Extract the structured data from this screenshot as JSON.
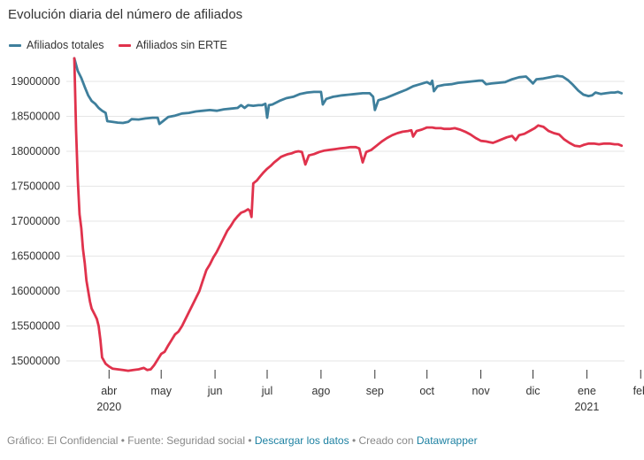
{
  "chart_data": {
    "type": "line",
    "title": "Evolución diaria del número de afiliados",
    "xlabel": "",
    "ylabel": "",
    "ylim": [
      14850000,
      19350000
    ],
    "x_range": [
      0,
      321
    ],
    "yticks": [
      15000000,
      15500000,
      16000000,
      16500000,
      17000000,
      17500000,
      18000000,
      18500000,
      19000000
    ],
    "ytick_labels": [
      "15000000",
      "15500000",
      "16000000",
      "16500000",
      "17000000",
      "17500000",
      "18000000",
      "18500000",
      "19000000"
    ],
    "xticks": [
      {
        "day": 20,
        "label": "abr",
        "year": "2020"
      },
      {
        "day": 50,
        "label": "may",
        "year": ""
      },
      {
        "day": 81,
        "label": "jun",
        "year": ""
      },
      {
        "day": 111,
        "label": "jul",
        "year": ""
      },
      {
        "day": 142,
        "label": "ago",
        "year": ""
      },
      {
        "day": 173,
        "label": "sep",
        "year": ""
      },
      {
        "day": 203,
        "label": "oct",
        "year": ""
      },
      {
        "day": 234,
        "label": "nov",
        "year": ""
      },
      {
        "day": 264,
        "label": "dic",
        "year": ""
      },
      {
        "day": 295,
        "label": "ene",
        "year": "2021"
      },
      {
        "day": 326,
        "label": "feb",
        "year": ""
      }
    ],
    "series": [
      {
        "name": "Afiliados totales",
        "color": "#3e7f9c",
        "points": [
          [
            0,
            19330000
          ],
          [
            2,
            19150000
          ],
          [
            4,
            19050000
          ],
          [
            6,
            18920000
          ],
          [
            8,
            18800000
          ],
          [
            10,
            18720000
          ],
          [
            12,
            18680000
          ],
          [
            14,
            18620000
          ],
          [
            16,
            18580000
          ],
          [
            18,
            18550000
          ],
          [
            19,
            18430000
          ],
          [
            22,
            18420000
          ],
          [
            25,
            18410000
          ],
          [
            28,
            18405000
          ],
          [
            31,
            18420000
          ],
          [
            33,
            18460000
          ],
          [
            37,
            18455000
          ],
          [
            41,
            18470000
          ],
          [
            45,
            18480000
          ],
          [
            48,
            18480000
          ],
          [
            49,
            18390000
          ],
          [
            51,
            18430000
          ],
          [
            54,
            18490000
          ],
          [
            58,
            18510000
          ],
          [
            62,
            18540000
          ],
          [
            66,
            18550000
          ],
          [
            70,
            18570000
          ],
          [
            74,
            18580000
          ],
          [
            78,
            18590000
          ],
          [
            82,
            18580000
          ],
          [
            86,
            18600000
          ],
          [
            90,
            18610000
          ],
          [
            94,
            18620000
          ],
          [
            96,
            18660000
          ],
          [
            98,
            18620000
          ],
          [
            100,
            18660000
          ],
          [
            103,
            18650000
          ],
          [
            106,
            18660000
          ],
          [
            108,
            18660000
          ],
          [
            110,
            18680000
          ],
          [
            111,
            18480000
          ],
          [
            112,
            18660000
          ],
          [
            114,
            18670000
          ],
          [
            118,
            18720000
          ],
          [
            122,
            18760000
          ],
          [
            126,
            18780000
          ],
          [
            130,
            18820000
          ],
          [
            134,
            18840000
          ],
          [
            138,
            18850000
          ],
          [
            142,
            18850000
          ],
          [
            143,
            18670000
          ],
          [
            145,
            18750000
          ],
          [
            149,
            18780000
          ],
          [
            154,
            18800000
          ],
          [
            158,
            18810000
          ],
          [
            162,
            18820000
          ],
          [
            166,
            18830000
          ],
          [
            170,
            18830000
          ],
          [
            172,
            18780000
          ],
          [
            173,
            18590000
          ],
          [
            175,
            18730000
          ],
          [
            179,
            18760000
          ],
          [
            183,
            18800000
          ],
          [
            187,
            18840000
          ],
          [
            191,
            18880000
          ],
          [
            195,
            18930000
          ],
          [
            199,
            18960000
          ],
          [
            203,
            18990000
          ],
          [
            205,
            18960000
          ],
          [
            206,
            19010000
          ],
          [
            207,
            18860000
          ],
          [
            209,
            18930000
          ],
          [
            213,
            18950000
          ],
          [
            217,
            18960000
          ],
          [
            221,
            18980000
          ],
          [
            225,
            18990000
          ],
          [
            229,
            19000000
          ],
          [
            233,
            19010000
          ],
          [
            235,
            19010000
          ],
          [
            237,
            18960000
          ],
          [
            240,
            18970000
          ],
          [
            244,
            18980000
          ],
          [
            248,
            18990000
          ],
          [
            252,
            19030000
          ],
          [
            256,
            19060000
          ],
          [
            260,
            19070000
          ],
          [
            262,
            19020000
          ],
          [
            264,
            18970000
          ],
          [
            266,
            19030000
          ],
          [
            270,
            19040000
          ],
          [
            274,
            19060000
          ],
          [
            278,
            19080000
          ],
          [
            281,
            19070000
          ],
          [
            284,
            19020000
          ],
          [
            287,
            18950000
          ],
          [
            290,
            18870000
          ],
          [
            293,
            18810000
          ],
          [
            296,
            18790000
          ],
          [
            298,
            18800000
          ],
          [
            300,
            18840000
          ],
          [
            303,
            18820000
          ],
          [
            306,
            18830000
          ],
          [
            309,
            18840000
          ],
          [
            311,
            18840000
          ],
          [
            313,
            18850000
          ],
          [
            315,
            18830000
          ]
        ]
      },
      {
        "name": "Afiliados sin ERTE",
        "color": "#e0324c",
        "points": [
          [
            0,
            19330000
          ],
          [
            1,
            18300000
          ],
          [
            2,
            17600000
          ],
          [
            3,
            17100000
          ],
          [
            4,
            16900000
          ],
          [
            5,
            16600000
          ],
          [
            6,
            16400000
          ],
          [
            7,
            16150000
          ],
          [
            8,
            16000000
          ],
          [
            9,
            15850000
          ],
          [
            10,
            15750000
          ],
          [
            12,
            15650000
          ],
          [
            13,
            15600000
          ],
          [
            14,
            15500000
          ],
          [
            15,
            15300000
          ],
          [
            16,
            15050000
          ],
          [
            18,
            14960000
          ],
          [
            20,
            14920000
          ],
          [
            22,
            14890000
          ],
          [
            25,
            14880000
          ],
          [
            28,
            14870000
          ],
          [
            31,
            14860000
          ],
          [
            34,
            14870000
          ],
          [
            37,
            14880000
          ],
          [
            40,
            14900000
          ],
          [
            42,
            14870000
          ],
          [
            44,
            14880000
          ],
          [
            46,
            14940000
          ],
          [
            48,
            15020000
          ],
          [
            50,
            15100000
          ],
          [
            52,
            15130000
          ],
          [
            54,
            15220000
          ],
          [
            56,
            15300000
          ],
          [
            58,
            15380000
          ],
          [
            60,
            15420000
          ],
          [
            62,
            15500000
          ],
          [
            64,
            15600000
          ],
          [
            66,
            15700000
          ],
          [
            68,
            15800000
          ],
          [
            70,
            15900000
          ],
          [
            72,
            16000000
          ],
          [
            74,
            16150000
          ],
          [
            76,
            16300000
          ],
          [
            78,
            16380000
          ],
          [
            80,
            16480000
          ],
          [
            82,
            16560000
          ],
          [
            84,
            16660000
          ],
          [
            86,
            16760000
          ],
          [
            88,
            16860000
          ],
          [
            90,
            16930000
          ],
          [
            92,
            17010000
          ],
          [
            94,
            17070000
          ],
          [
            96,
            17120000
          ],
          [
            98,
            17140000
          ],
          [
            100,
            17170000
          ],
          [
            101,
            17150000
          ],
          [
            102,
            17060000
          ],
          [
            103,
            17540000
          ],
          [
            105,
            17580000
          ],
          [
            107,
            17640000
          ],
          [
            109,
            17700000
          ],
          [
            111,
            17750000
          ],
          [
            113,
            17790000
          ],
          [
            115,
            17840000
          ],
          [
            117,
            17880000
          ],
          [
            119,
            17920000
          ],
          [
            121,
            17940000
          ],
          [
            123,
            17960000
          ],
          [
            125,
            17970000
          ],
          [
            127,
            17990000
          ],
          [
            129,
            18000000
          ],
          [
            131,
            17990000
          ],
          [
            133,
            17810000
          ],
          [
            135,
            17940000
          ],
          [
            138,
            17960000
          ],
          [
            141,
            17990000
          ],
          [
            144,
            18010000
          ],
          [
            147,
            18020000
          ],
          [
            150,
            18030000
          ],
          [
            153,
            18040000
          ],
          [
            156,
            18050000
          ],
          [
            159,
            18060000
          ],
          [
            162,
            18060000
          ],
          [
            164,
            18040000
          ],
          [
            166,
            17840000
          ],
          [
            168,
            17990000
          ],
          [
            171,
            18020000
          ],
          [
            174,
            18080000
          ],
          [
            177,
            18140000
          ],
          [
            180,
            18190000
          ],
          [
            183,
            18230000
          ],
          [
            186,
            18260000
          ],
          [
            189,
            18280000
          ],
          [
            192,
            18290000
          ],
          [
            194,
            18300000
          ],
          [
            195,
            18210000
          ],
          [
            197,
            18290000
          ],
          [
            200,
            18310000
          ],
          [
            203,
            18340000
          ],
          [
            206,
            18340000
          ],
          [
            208,
            18330000
          ],
          [
            211,
            18330000
          ],
          [
            213,
            18320000
          ],
          [
            216,
            18320000
          ],
          [
            219,
            18330000
          ],
          [
            222,
            18310000
          ],
          [
            225,
            18280000
          ],
          [
            228,
            18240000
          ],
          [
            231,
            18190000
          ],
          [
            234,
            18150000
          ],
          [
            237,
            18140000
          ],
          [
            239,
            18130000
          ],
          [
            241,
            18120000
          ],
          [
            243,
            18140000
          ],
          [
            246,
            18170000
          ],
          [
            249,
            18200000
          ],
          [
            252,
            18220000
          ],
          [
            254,
            18160000
          ],
          [
            256,
            18230000
          ],
          [
            259,
            18250000
          ],
          [
            262,
            18290000
          ],
          [
            265,
            18330000
          ],
          [
            267,
            18370000
          ],
          [
            270,
            18350000
          ],
          [
            273,
            18290000
          ],
          [
            276,
            18260000
          ],
          [
            279,
            18240000
          ],
          [
            282,
            18170000
          ],
          [
            285,
            18120000
          ],
          [
            288,
            18080000
          ],
          [
            291,
            18070000
          ],
          [
            293,
            18090000
          ],
          [
            296,
            18110000
          ],
          [
            299,
            18110000
          ],
          [
            302,
            18100000
          ],
          [
            305,
            18110000
          ],
          [
            308,
            18110000
          ],
          [
            311,
            18100000
          ],
          [
            313,
            18100000
          ],
          [
            315,
            18080000
          ]
        ]
      }
    ]
  },
  "legend": {
    "series0": "Afiliados totales",
    "series1": "Afiliados sin ERTE",
    "color0": "#3e7f9c",
    "color1": "#e0324c"
  },
  "footer": {
    "prefix": "Gráfico: El Confidencial • Fuente: Seguridad social • ",
    "download_link": "Descargar los datos",
    "middle": " • Creado con ",
    "tool_link": "Datawrapper"
  }
}
